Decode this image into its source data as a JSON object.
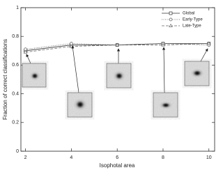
{
  "chart_data": {
    "type": "line",
    "x_label": "Isophotal area",
    "y_label": "Fraction of correct classifications",
    "x": [
      2,
      4,
      6,
      8,
      10
    ],
    "series": [
      {
        "name": "Global",
        "color": "#333333",
        "dash": "solid",
        "marker": "square",
        "values": [
          0.7,
          0.74,
          0.74,
          0.75,
          0.75
        ]
      },
      {
        "name": "Early-Type",
        "color": "#555555",
        "dash": "dotted",
        "marker": "circle",
        "values": [
          0.71,
          0.75,
          0.74,
          0.75,
          0.74
        ]
      },
      {
        "name": "Late-Type",
        "color": "#666666",
        "dash": "dashed",
        "marker": "triangle",
        "values": [
          0.69,
          0.73,
          0.74,
          0.74,
          0.75
        ]
      }
    ],
    "xlim": [
      1.8,
      10.25
    ],
    "xticks": [
      2,
      4,
      6,
      8,
      10
    ],
    "ylim": [
      0,
      1
    ],
    "yticks": [
      0,
      0.2,
      0.4,
      0.6,
      0.8,
      1
    ],
    "legend": "upper right"
  }
}
